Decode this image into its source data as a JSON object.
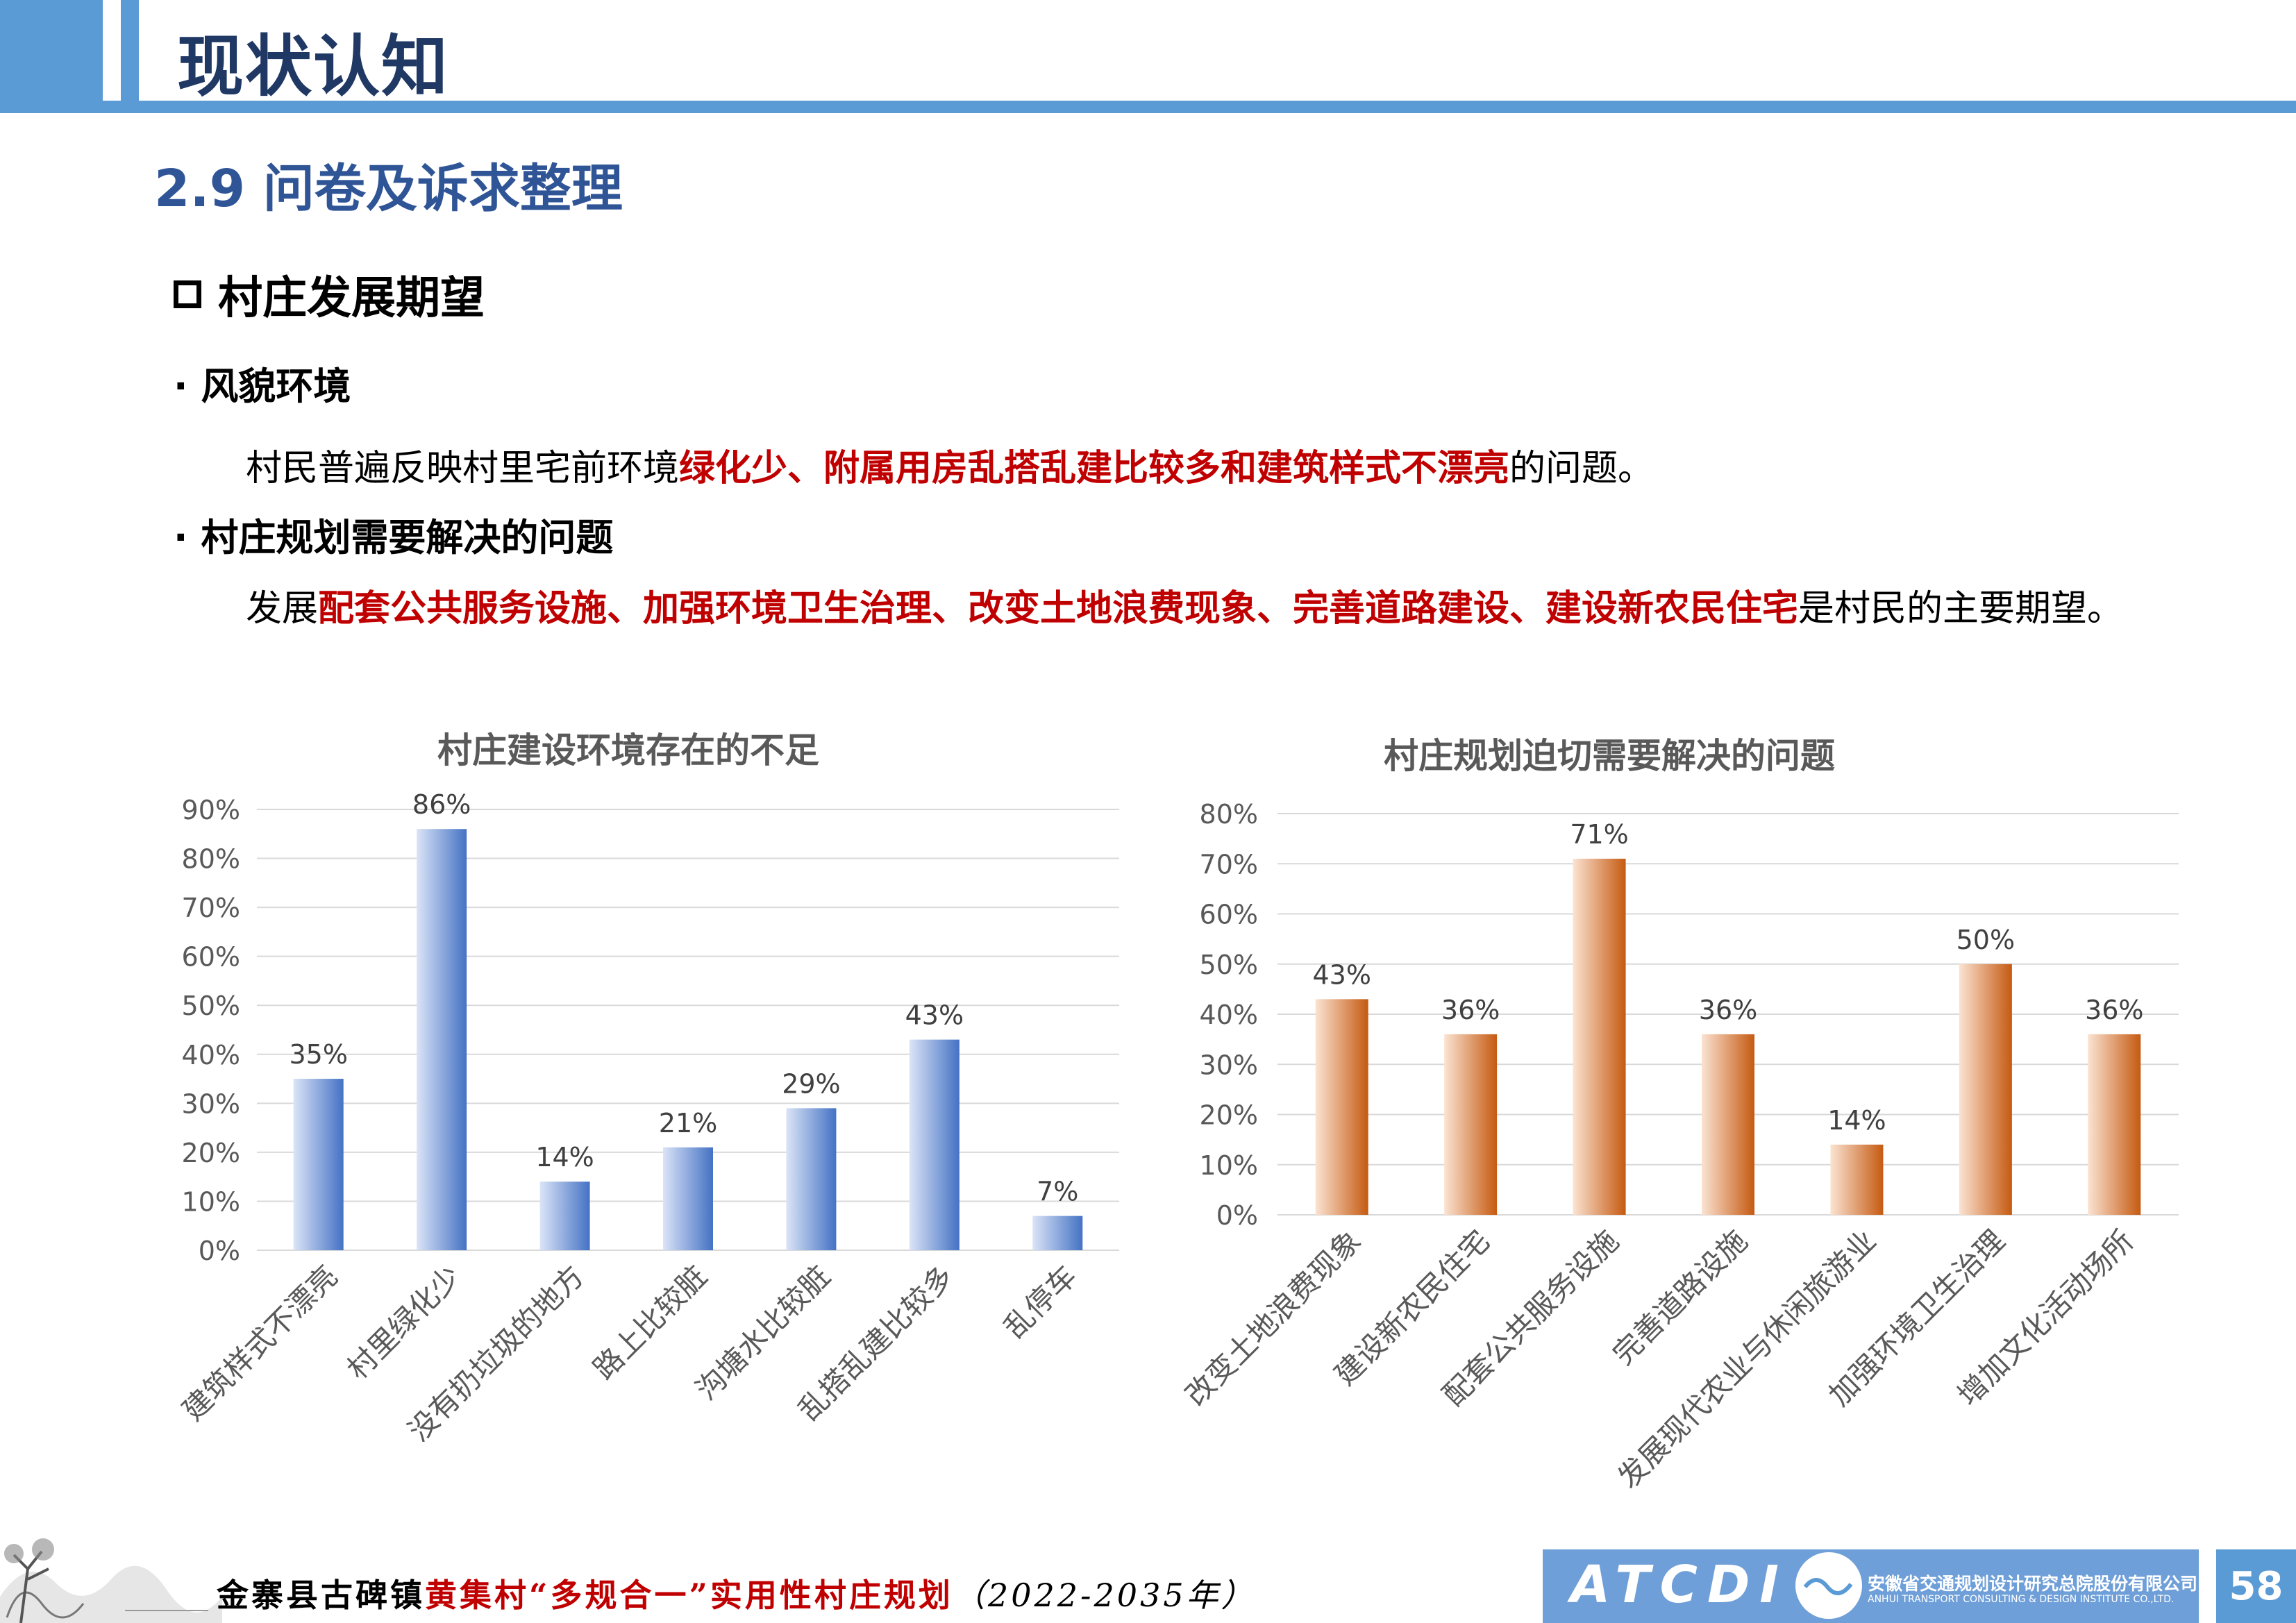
{
  "header": {
    "title": "现状认知"
  },
  "section": {
    "title": "2.9 问卷及诉求整理"
  },
  "heading": {
    "label": "村庄发展期望"
  },
  "bullet1": {
    "label": "风貌环境"
  },
  "para1": {
    "pre": "村民普遍反映村里宅前环境",
    "highlight": "绿化少、附属用房乱搭乱建比较多和建筑样式不漂亮",
    "post": "的问题。"
  },
  "bullet2": {
    "label": "村庄规划需要解决的问题"
  },
  "para2": {
    "pre": "发展",
    "highlight": "配套公共服务设施、加强环境卫生治理、改变土地浪费现象、完善道路建设、建设新农民住宅",
    "post": "是村民的主要期望。"
  },
  "chart_data": [
    {
      "type": "bar",
      "title": "村庄建设环境存在的不足",
      "categories": [
        "建筑样式不漂亮",
        "村里绿化少",
        "没有扔垃圾的地方",
        "路上比较脏",
        "沟塘水比较脏",
        "乱搭乱建比较多",
        "乱停车"
      ],
      "values": [
        35,
        86,
        14,
        21,
        29,
        43,
        7
      ],
      "value_labels": [
        "35%",
        "86%",
        "14%",
        "21%",
        "29%",
        "43%",
        "7%"
      ],
      "ylim": [
        0,
        90
      ],
      "yticks": [
        "0%",
        "10%",
        "20%",
        "30%",
        "40%",
        "50%",
        "60%",
        "70%",
        "80%",
        "90%"
      ],
      "color": "#4472c4",
      "grid": true
    },
    {
      "type": "bar",
      "title": "村庄规划迫切需要解决的问题",
      "categories": [
        "改变土地浪费现象",
        "建设新农民住宅",
        "配套公共服务设施",
        "完善道路设施",
        "发展现代农业与休闲旅游业",
        "加强环境卫生治理",
        "增加文化活动场所"
      ],
      "values": [
        43,
        36,
        71,
        36,
        14,
        50,
        36
      ],
      "value_labels": [
        "43%",
        "36%",
        "71%",
        "36%",
        "14%",
        "50%",
        "36%"
      ],
      "ylim": [
        0,
        80
      ],
      "yticks": [
        "0%",
        "10%",
        "20%",
        "30%",
        "40%",
        "50%",
        "60%",
        "70%",
        "80%"
      ],
      "color": "#c55a11",
      "grid": true
    }
  ],
  "footer": {
    "pre": "金寨县古碑镇",
    "highlight": "黄集村“多规合一”实用性村庄规划",
    "years": "（2022-2035年）",
    "logo_text": "ATCDI",
    "company_cn": "安徽省交通规划设计研究总院股份有限公司",
    "company_en": "ANHUI TRANSPORT CONSULTING & DESIGN INSTITUTE CO.,LTD.",
    "page": "58"
  }
}
